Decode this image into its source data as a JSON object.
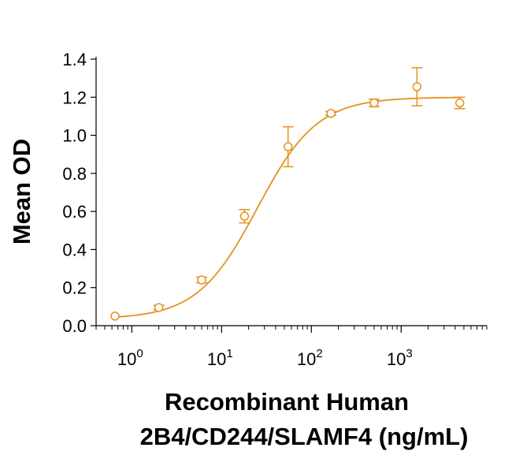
{
  "chart_data": {
    "type": "scatter",
    "xlabel_lines": [
      "Recombinant Human",
      "2B4/CD244/SLAMF4 (ng/mL)"
    ],
    "ylabel": "Mean OD",
    "x_scale": "log",
    "xlim": [
      0.4,
      9000
    ],
    "ylim": [
      0,
      1.4
    ],
    "x_ticks": [
      {
        "base": "10",
        "exp": "0",
        "value": 1
      },
      {
        "base": "10",
        "exp": "1",
        "value": 10
      },
      {
        "base": "10",
        "exp": "2",
        "value": 100
      },
      {
        "base": "10",
        "exp": "3",
        "value": 1000
      }
    ],
    "y_ticks": [
      "0.0",
      "0.2",
      "0.4",
      "0.6",
      "0.8",
      "1.0",
      "1.2",
      "1.4"
    ],
    "grid": false,
    "color": "#E8901E",
    "series": [
      {
        "points": [
          {
            "x": 0.65,
            "y": 0.05,
            "err": 0.0
          },
          {
            "x": 2.0,
            "y": 0.095,
            "err": 0.012
          },
          {
            "x": 6.0,
            "y": 0.24,
            "err": 0.015
          },
          {
            "x": 18.0,
            "y": 0.575,
            "err": 0.035
          },
          {
            "x": 55.0,
            "y": 0.94,
            "err": 0.105
          },
          {
            "x": 165.0,
            "y": 1.115,
            "err": 0.01
          },
          {
            "x": 500.0,
            "y": 1.17,
            "err": 0.02
          },
          {
            "x": 1500.0,
            "y": 1.255,
            "err": 0.1
          },
          {
            "x": 4500.0,
            "y": 1.17,
            "err": 0.03
          }
        ]
      }
    ],
    "fit": {
      "bottom": 0.035,
      "top": 1.2,
      "ec50": 25.0,
      "hill": 1.3
    }
  }
}
